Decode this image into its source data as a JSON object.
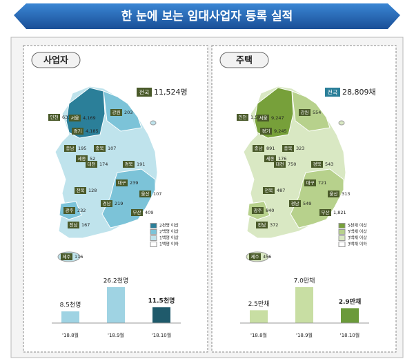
{
  "title": "한 눈에 보는 임대사업자 등록 실적",
  "panels": [
    {
      "heading": "사업자",
      "total_label": "전국",
      "total": "11,524명",
      "regions": [
        {
          "name": "인천",
          "value": "631"
        },
        {
          "name": "서울",
          "value": "4,169"
        },
        {
          "name": "강원",
          "value": "203"
        },
        {
          "name": "경기",
          "value": "4,185"
        },
        {
          "name": "충남",
          "value": "195"
        },
        {
          "name": "충북",
          "value": "107"
        },
        {
          "name": "세종",
          "value": "52"
        },
        {
          "name": "대전",
          "value": "174"
        },
        {
          "name": "경북",
          "value": "191"
        },
        {
          "name": "대구",
          "value": "239"
        },
        {
          "name": "울산",
          "value": "107"
        },
        {
          "name": "전북",
          "value": "128"
        },
        {
          "name": "광주",
          "value": "232"
        },
        {
          "name": "경남",
          "value": "219"
        },
        {
          "name": "부산",
          "value": "409"
        },
        {
          "name": "전남",
          "value": "167"
        },
        {
          "name": "제주",
          "value": "116"
        }
      ],
      "legend": [
        "2천명 이상",
        "2백명 이상",
        "1백명 이상",
        "1백명 이하"
      ],
      "legend_colors": [
        "#2b7f99",
        "#7cc3d8",
        "#bfe3ec",
        "#ffffff"
      ]
    },
    {
      "heading": "주택",
      "total_label": "전국",
      "total": "28,809채",
      "regions": [
        {
          "name": "인천",
          "value": "1,521"
        },
        {
          "name": "서울",
          "value": "9,247"
        },
        {
          "name": "강원",
          "value": "554"
        },
        {
          "name": "경기",
          "value": "9,245"
        },
        {
          "name": "충남",
          "value": "891"
        },
        {
          "name": "충북",
          "value": "323"
        },
        {
          "name": "세종",
          "value": "176"
        },
        {
          "name": "대전",
          "value": "750"
        },
        {
          "name": "경북",
          "value": "543"
        },
        {
          "name": "대구",
          "value": "721"
        },
        {
          "name": "울산",
          "value": "313"
        },
        {
          "name": "전북",
          "value": "487"
        },
        {
          "name": "광주",
          "value": "840"
        },
        {
          "name": "경남",
          "value": "549"
        },
        {
          "name": "부산",
          "value": "1,821"
        },
        {
          "name": "전남",
          "value": "372"
        },
        {
          "name": "제주",
          "value": "456"
        }
      ],
      "legend": [
        "5천채 이상",
        "5백채 이상",
        "3백채 이상",
        "3백채 이하"
      ],
      "legend_colors": [
        "#77a03a",
        "#b7d18c",
        "#d9e8c3",
        "#ffffff"
      ]
    }
  ],
  "chart_data": [
    {
      "type": "bar",
      "categories": [
        "'18.8월",
        "'18.9월",
        "'18.10월"
      ],
      "values": [
        8.5,
        26.2,
        11.5
      ],
      "value_labels": [
        "8.5천명",
        "26.2천명",
        "11.5천명"
      ],
      "colors": [
        "#9fd3e3",
        "#9fd3e3",
        "#1f5a6b"
      ]
    },
    {
      "type": "bar",
      "categories": [
        "'18.8월",
        "'18.9월",
        "'18.10월"
      ],
      "values": [
        2.5,
        7.0,
        2.9
      ],
      "value_labels": [
        "2.5만채",
        "7.0만채",
        "2.9만채"
      ],
      "colors": [
        "#c8dea3",
        "#c8dea3",
        "#6b9a3a"
      ]
    }
  ]
}
